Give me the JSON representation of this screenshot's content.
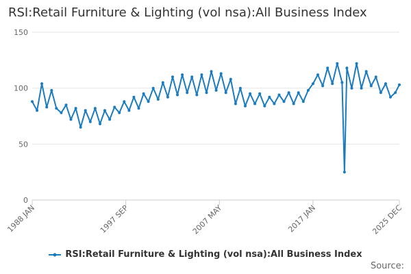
{
  "chart_data": {
    "type": "line",
    "title": "RSI:Retail Furniture & Lighting (vol nsa):All Business Index",
    "xlabel": "",
    "ylabel": "",
    "ylim": [
      0,
      150
    ],
    "yticks": [
      0,
      50,
      100,
      150
    ],
    "xlim": [
      "1988 JAN",
      "2025 DEC"
    ],
    "xtick_labels": [
      "1988 JAN",
      "1997 SEP",
      "2007 MAY",
      "2017 JAN",
      "2025 DEC"
    ],
    "grid": "horizontal",
    "legend_position": "bottom",
    "series": [
      {
        "name": "RSI:Retail Furniture & Lighting (vol nsa):All Business Index",
        "color": "#1a7bc1",
        "x": [
          "1988 JAN",
          "1988 JUL",
          "1989 JAN",
          "1989 JUL",
          "1990 JAN",
          "1990 JUL",
          "1991 JAN",
          "1991 JUL",
          "1992 JAN",
          "1992 JUL",
          "1993 JAN",
          "1993 JUL",
          "1994 JAN",
          "1994 JUL",
          "1995 JAN",
          "1995 JUL",
          "1996 JAN",
          "1996 JUL",
          "1997 JAN",
          "1997 JUL",
          "1998 JAN",
          "1998 JUL",
          "1999 JAN",
          "1999 JUL",
          "2000 JAN",
          "2000 JUL",
          "2001 JAN",
          "2001 JUL",
          "2002 JAN",
          "2002 JUL",
          "2003 JAN",
          "2003 JUL",
          "2004 JAN",
          "2004 JUL",
          "2005 JAN",
          "2005 JUL",
          "2006 JAN",
          "2006 JUL",
          "2007 JAN",
          "2007 JUL",
          "2008 JAN",
          "2008 JUL",
          "2009 JAN",
          "2009 JUL",
          "2010 JAN",
          "2010 JUL",
          "2011 JAN",
          "2011 JUL",
          "2012 JAN",
          "2012 JUL",
          "2013 JAN",
          "2013 JUL",
          "2014 JAN",
          "2014 JUL",
          "2015 JAN",
          "2015 JUL",
          "2016 JAN",
          "2016 JUL",
          "2017 JAN",
          "2017 JUL",
          "2018 JAN",
          "2018 JUL",
          "2019 JAN",
          "2019 JUL",
          "2020 JAN",
          "2020 APR",
          "2020 JUL",
          "2021 JAN",
          "2021 JUL",
          "2022 JAN",
          "2022 JUL",
          "2023 JAN",
          "2023 JUL",
          "2024 JAN",
          "2024 JUL",
          "2025 JAN",
          "2025 JUL",
          "2025 DEC"
        ],
        "values": [
          88,
          80,
          104,
          83,
          98,
          82,
          78,
          85,
          72,
          82,
          65,
          80,
          70,
          82,
          68,
          80,
          72,
          83,
          78,
          88,
          80,
          92,
          82,
          95,
          88,
          100,
          90,
          105,
          92,
          110,
          94,
          112,
          96,
          110,
          94,
          112,
          96,
          115,
          98,
          113,
          96,
          108,
          86,
          100,
          84,
          95,
          86,
          95,
          84,
          92,
          86,
          94,
          88,
          96,
          86,
          96,
          88,
          98,
          104,
          112,
          102,
          118,
          104,
          122,
          105,
          25,
          118,
          100,
          122,
          100,
          115,
          102,
          110,
          96,
          104,
          92,
          96,
          103
        ]
      }
    ]
  },
  "source_label": "Source:"
}
